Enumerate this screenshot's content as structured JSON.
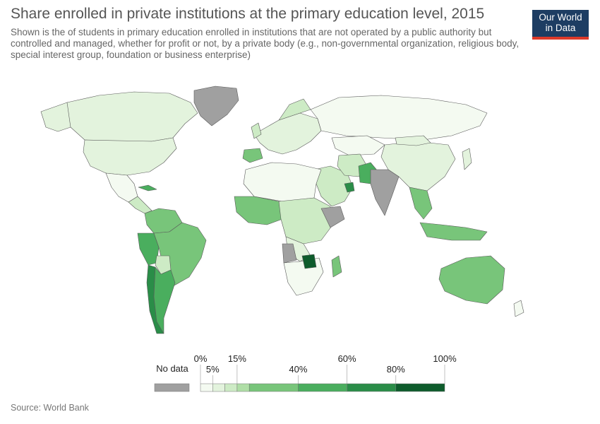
{
  "header": {
    "title": "Share enrolled in private institutions at the primary education level, 2015",
    "subtitle": "Shown is the of students in primary education enrolled in institutions that are not operated by a public authority but controlled and managed, whether for profit or not, by a private body (e.g., non-governmental organization, religious body, special interest group, foundation or business enterprise)"
  },
  "logo": {
    "line1": "Our World",
    "line2": "in Data",
    "bg": "#1d3d63",
    "accent": "#dd3a2a"
  },
  "legend": {
    "no_data_label": "No data",
    "no_data_color": "#a0a0a0",
    "bins": [
      {
        "from": 0,
        "to": 5,
        "color": "#f4faf1"
      },
      {
        "from": 5,
        "to": 10,
        "color": "#e3f3dd"
      },
      {
        "from": 10,
        "to": 15,
        "color": "#cdebc5"
      },
      {
        "from": 15,
        "to": 20,
        "color": "#afdea6"
      },
      {
        "from": 20,
        "to": 40,
        "color": "#78c57a"
      },
      {
        "from": 40,
        "to": 60,
        "color": "#4aae5e"
      },
      {
        "from": 60,
        "to": 80,
        "color": "#2a8d48"
      },
      {
        "from": 80,
        "to": 100,
        "color": "#0e5c2c"
      }
    ],
    "ticks_upper": [
      "0%",
      "15%",
      "60%",
      "100%"
    ],
    "ticks_upper_values": [
      0,
      15,
      60,
      100
    ],
    "ticks_lower": [
      "5%",
      "40%",
      "80%"
    ],
    "ticks_lower_values": [
      5,
      40,
      80
    ]
  },
  "footer": {
    "source": "Source: World Bank"
  }
}
